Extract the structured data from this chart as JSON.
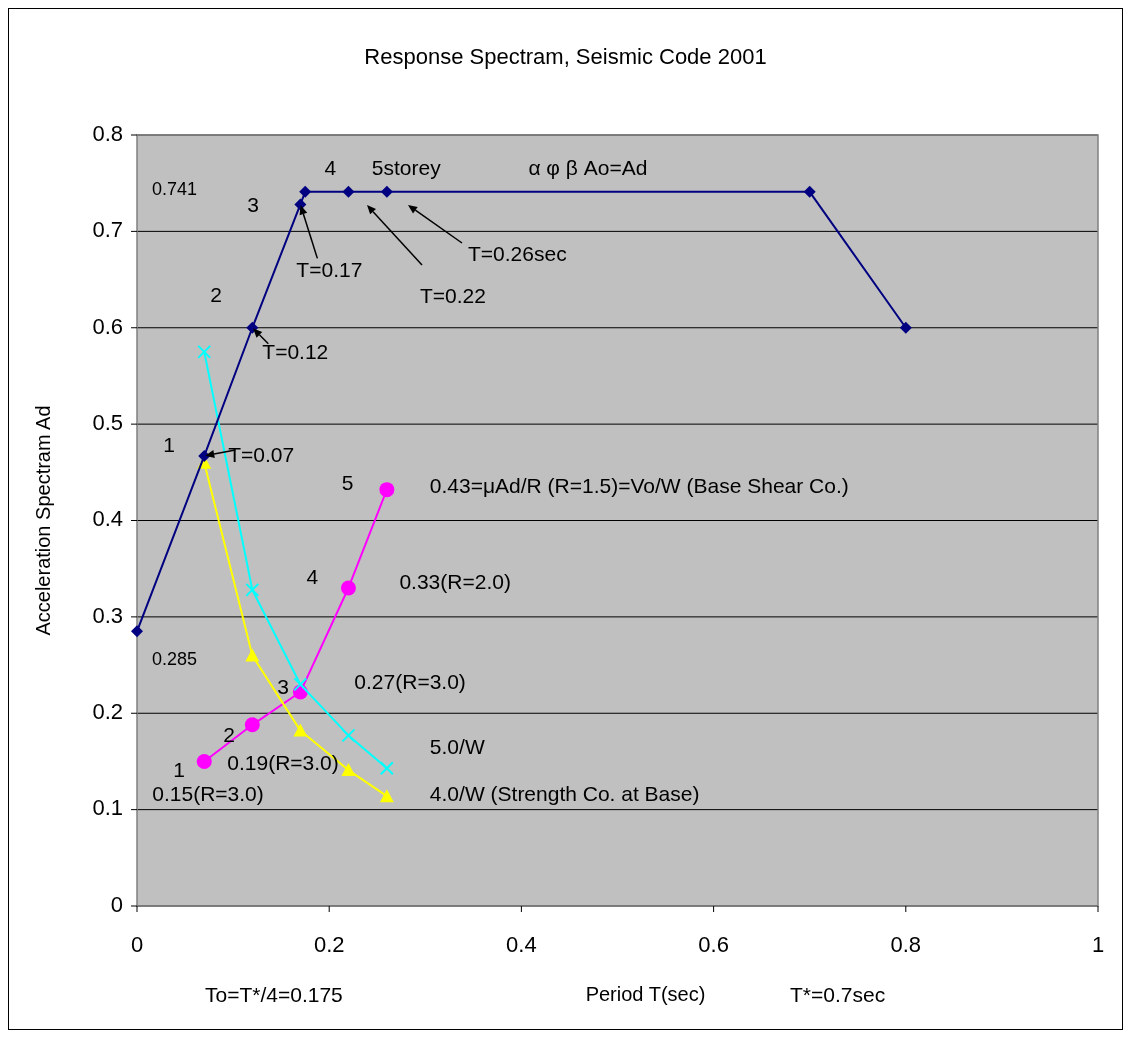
{
  "chart_data": {
    "type": "line",
    "title": "Response Spectram, Seismic Code 2001",
    "xlabel": "Period T(sec)",
    "ylabel": "Acceleration Spectram Ad",
    "xlim": [
      0,
      1
    ],
    "xticks": [
      0,
      0.2,
      0.4,
      0.6,
      0.8,
      1
    ],
    "ylim": [
      0,
      0.8
    ],
    "yticks": [
      0,
      0.1,
      0.2,
      0.3,
      0.4,
      0.5,
      0.6,
      0.7,
      0.8
    ],
    "grid": "y",
    "series": [
      {
        "color": "#000080",
        "marker": "diamond",
        "x": [
          0,
          0.07,
          0.12,
          0.17,
          0.175,
          0.22,
          0.26,
          0.7,
          0.8
        ],
        "values": [
          0.285,
          0.467,
          0.6,
          0.728,
          0.741,
          0.741,
          0.741,
          0.741,
          0.6
        ]
      },
      {
        "color": "#00ffff",
        "marker": "cross",
        "x": [
          0.07,
          0.12,
          0.17,
          0.22,
          0.26
        ],
        "values": [
          0.575,
          0.328,
          0.23,
          0.177,
          0.143
        ]
      },
      {
        "color": "#ffff00",
        "marker": "triangle",
        "x": [
          0.07,
          0.12,
          0.17,
          0.22,
          0.26
        ],
        "values": [
          0.46,
          0.26,
          0.182,
          0.141,
          0.114
        ]
      },
      {
        "color": "#ff00ff",
        "marker": "circle",
        "x": [
          0.07,
          0.12,
          0.17,
          0.22,
          0.26
        ],
        "values": [
          0.15,
          0.188,
          0.222,
          0.33,
          0.432
        ]
      }
    ],
    "annotations": [
      "0.741",
      {
        "text": "3",
        "x": 0.17,
        "y": 0.728
      },
      {
        "text": "4",
        "x": 0.22,
        "y": 0.741
      },
      {
        "text": "5storey",
        "x": 0.26,
        "y": 0.741
      },
      {
        "text": "α φ β Ao=Ad",
        "x": 0.4,
        "y": 0.741
      },
      {
        "text": "2",
        "x": 0.12,
        "y": 0.6
      },
      {
        "text": "T=0.17",
        "x": 0.17,
        "y": 0.728
      },
      "T=0.22",
      "T=0.26sec",
      {
        "text": "T=0.12",
        "x": 0.12,
        "y": 0.6
      },
      {
        "text": "1",
        "x": 0.07,
        "y": 0.467
      },
      {
        "text": "T=0.07",
        "x": 0.07,
        "y": 0.467
      },
      {
        "text": "5",
        "x": 0.26,
        "y": 0.432
      },
      {
        "text": "0.43=μAd/R (R=1.5)=Vo/W (Base Shear Co.)",
        "x": 0.26,
        "y": 0.432
      },
      {
        "text": "4",
        "x": 0.22,
        "y": 0.33
      },
      {
        "text": "0.33(R=2.0)",
        "x": 0.22,
        "y": 0.33
      },
      {
        "text": "0.285",
        "x": 0,
        "y": 0.285
      },
      {
        "text": "3",
        "x": 0.17,
        "y": 0.222
      },
      {
        "text": "0.27(R=3.0)",
        "x": 0.17,
        "y": 0.222
      },
      {
        "text": "2",
        "x": 0.12,
        "y": 0.188
      },
      {
        "text": "0.19(R=3.0)",
        "x": 0.12,
        "y": 0.188
      },
      {
        "text": "1",
        "x": 0.07,
        "y": 0.15
      },
      {
        "text": "0.15(R=3.0)",
        "x": 0.07,
        "y": 0.15
      },
      {
        "text": "5.0/W",
        "x": 0.26,
        "y": 0.143
      },
      {
        "text": "4.0/W (Strength Co. at Base)",
        "x": 0.26,
        "y": 0.113
      },
      "To=T*/4=0.175",
      "T*=0.7sec"
    ]
  }
}
